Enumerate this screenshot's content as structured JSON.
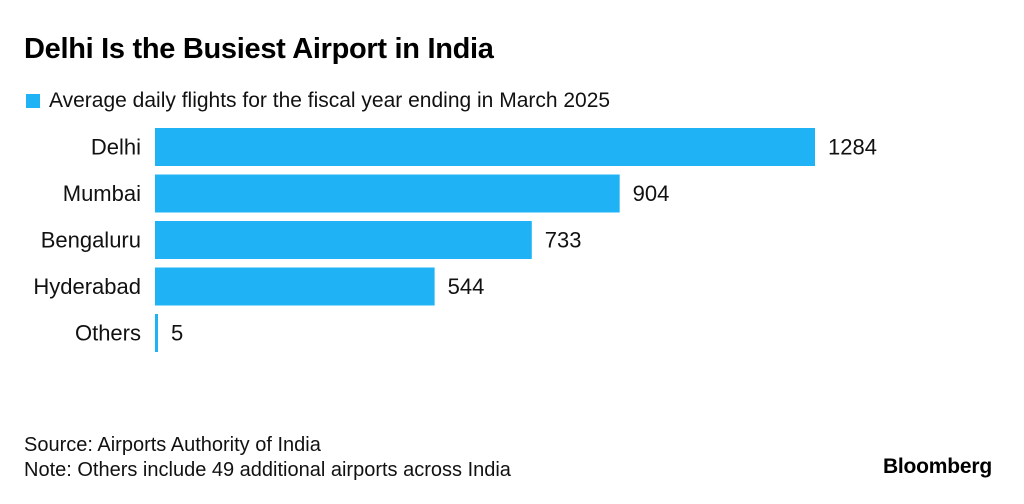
{
  "title": "Delhi Is the Busiest Airport in India",
  "legend": {
    "label": "Average daily flights for the fiscal year ending in March 2025",
    "color": "#1fb3f5"
  },
  "chart_data": {
    "type": "bar",
    "orientation": "horizontal",
    "categories": [
      "Delhi",
      "Mumbai",
      "Bengaluru",
      "Hyderabad",
      "Others"
    ],
    "series": [
      {
        "name": "Average daily flights for the fiscal year ending in March 2025",
        "values": [
          1284,
          904,
          733,
          544,
          5
        ],
        "color": "#1fb3f5"
      }
    ],
    "data_labels": [
      "1284",
      "904",
      "733",
      "544",
      "5"
    ],
    "grid": false,
    "legend_position": "top-left"
  },
  "footer": {
    "source": "Source: Airports Authority of India",
    "note": "Note: Others include 49 additional airports across India",
    "logo": "Bloomberg"
  }
}
